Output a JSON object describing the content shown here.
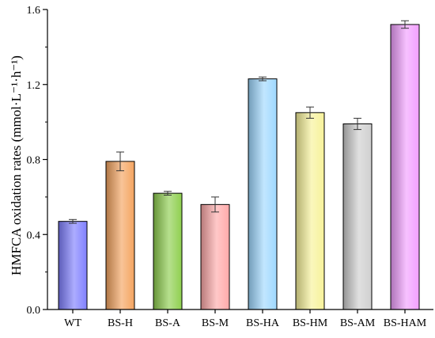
{
  "chart_data": {
    "type": "bar",
    "title": "",
    "xlabel": "",
    "ylabel": "HMFCA oxidation rates (mmol·L⁻¹·h⁻¹)",
    "ylim": [
      0,
      1.6
    ],
    "yticks": [
      0.0,
      0.4,
      0.8,
      1.2,
      1.6
    ],
    "ytick_labels": [
      "0.0",
      "0.4",
      "0.8",
      "1.2",
      "1.6"
    ],
    "categories": [
      "WT",
      "BS-H",
      "BS-A",
      "BS-M",
      "BS-HA",
      "BS-HM",
      "BS-AM",
      "BS-HAM"
    ],
    "values": [
      0.47,
      0.79,
      0.62,
      0.56,
      1.23,
      1.05,
      0.99,
      1.52
    ],
    "errors": [
      0.01,
      0.05,
      0.01,
      0.04,
      0.01,
      0.03,
      0.03,
      0.02
    ],
    "colors": [
      "#8080ff",
      "#f4a460",
      "#8fcf4f",
      "#ffaaaa",
      "#9fd8ff",
      "#f7f29a",
      "#cfcfcf",
      "#f2a0ff"
    ],
    "grid": false,
    "legend": "none"
  }
}
